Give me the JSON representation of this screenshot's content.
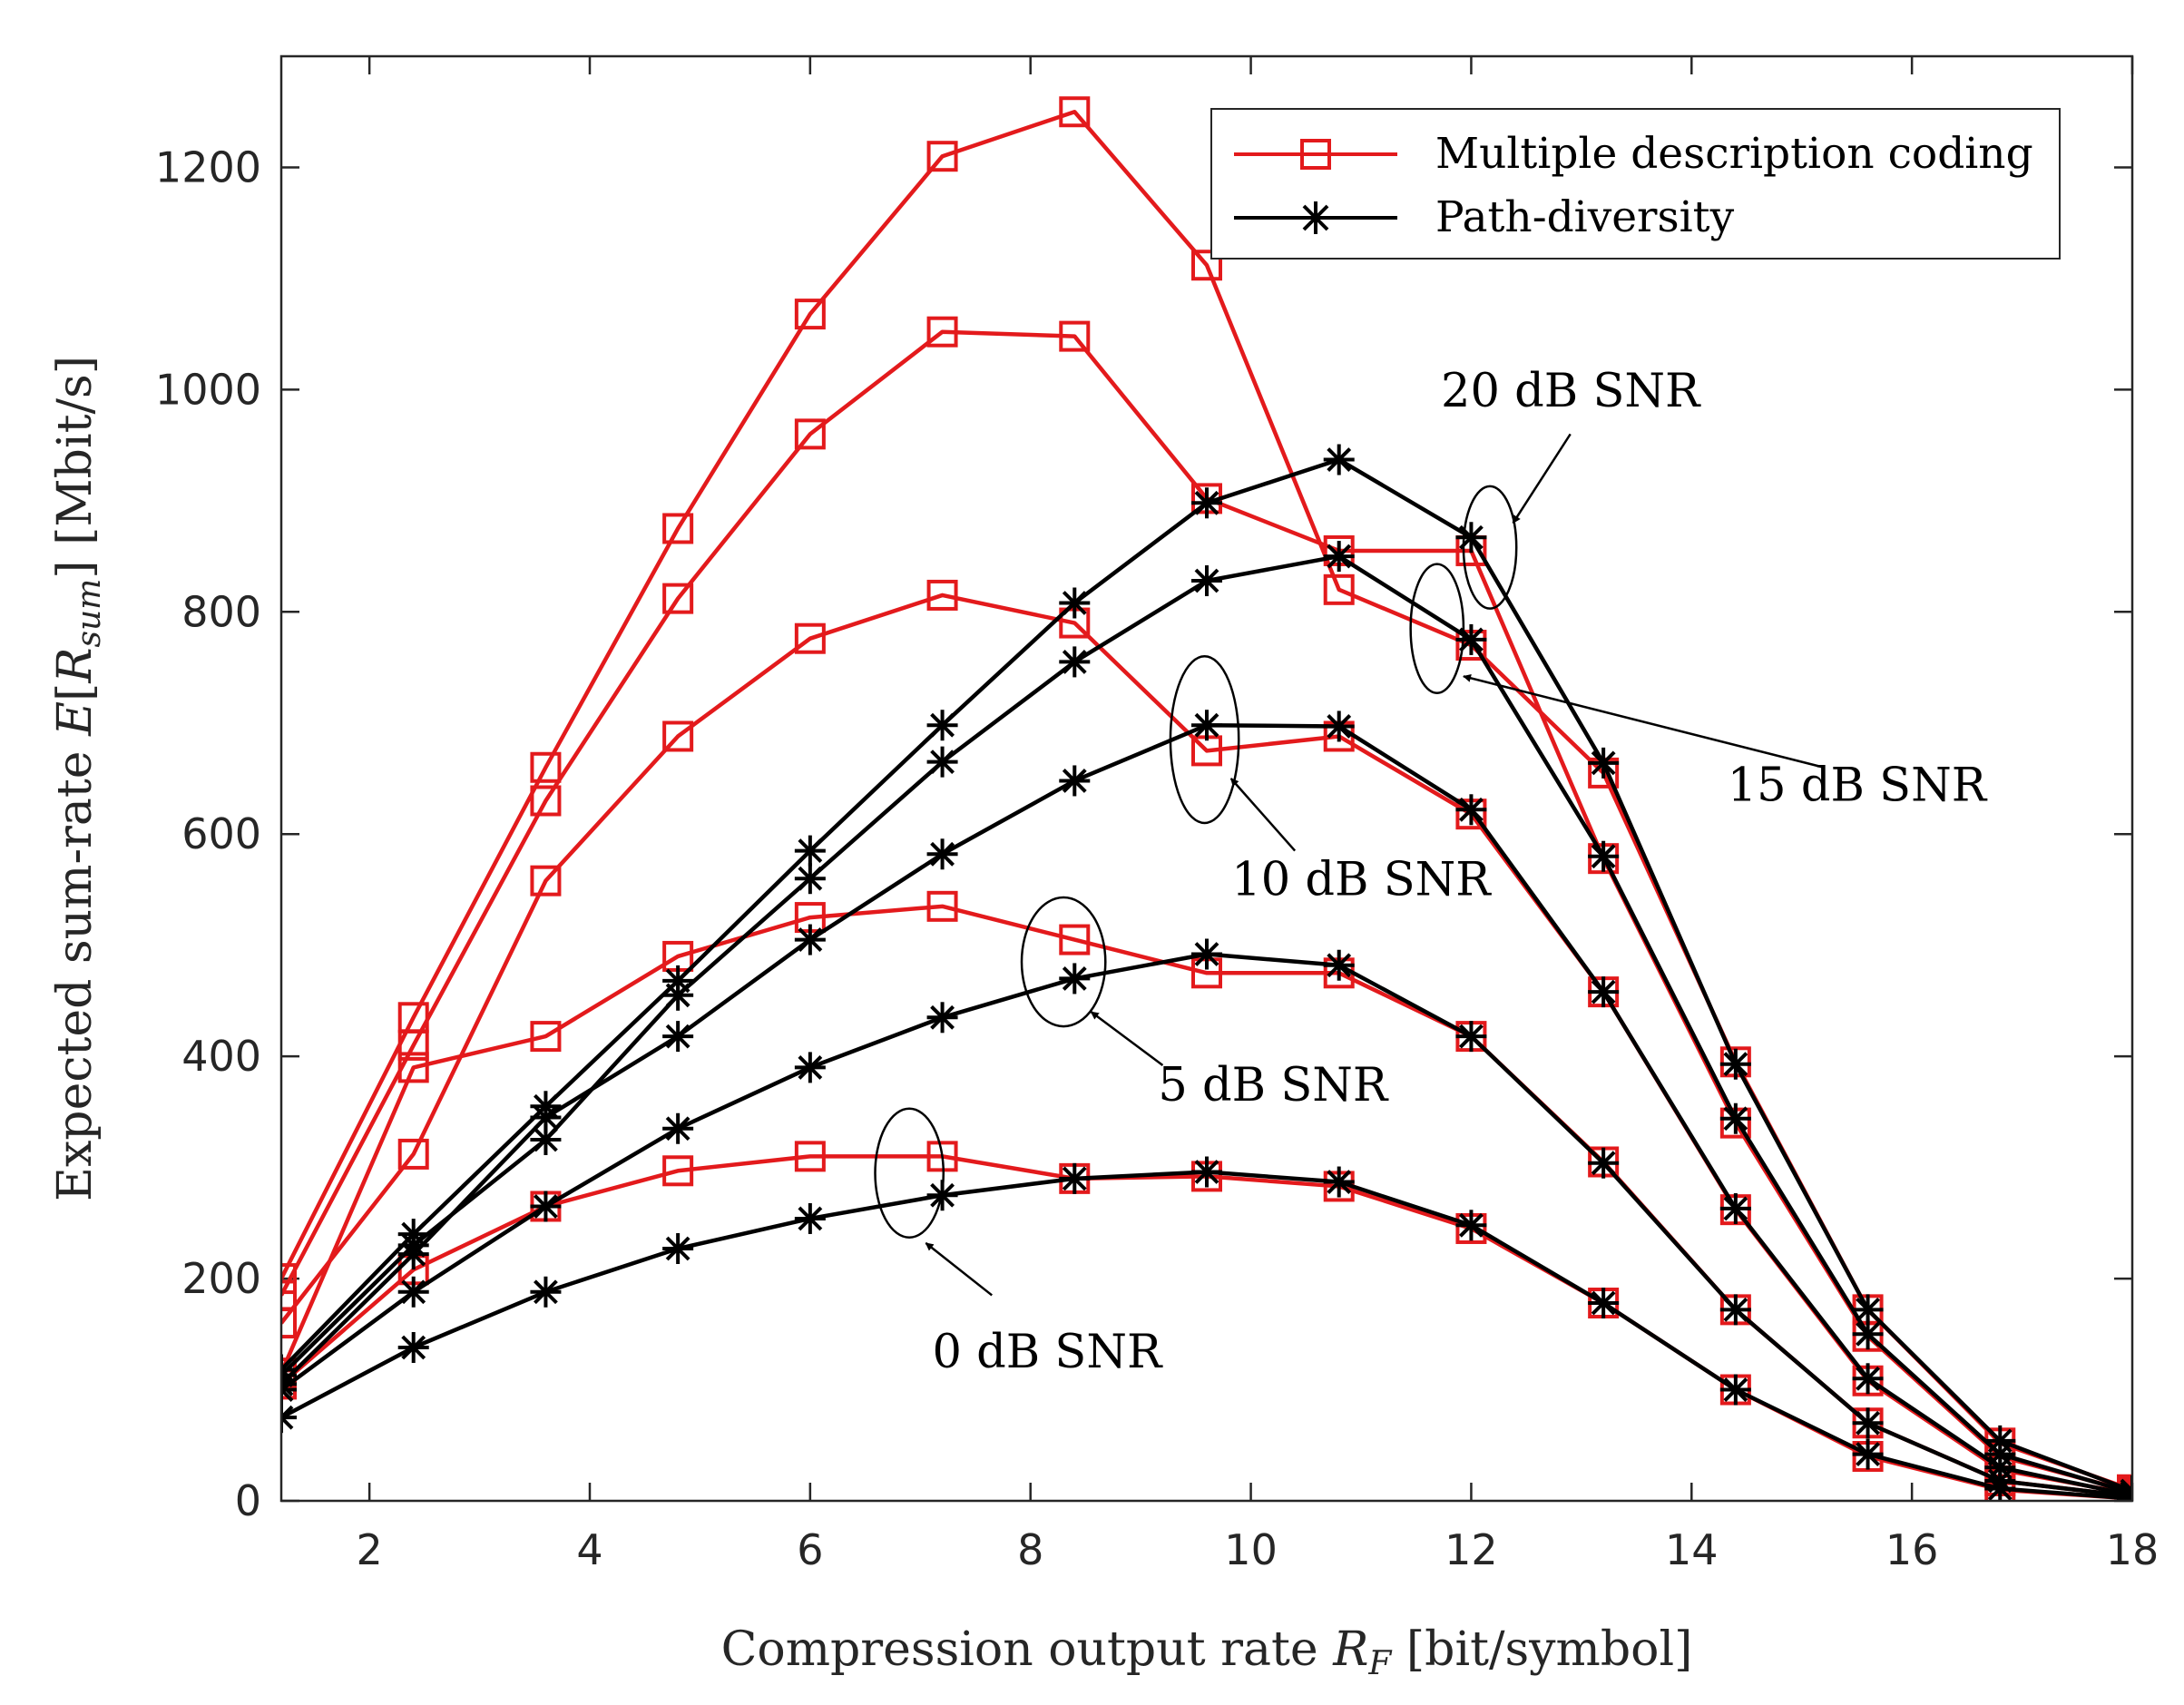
{
  "chart_data": {
    "type": "line",
    "xlabel": "Compression output rate R_F [bit/symbol]",
    "ylabel": "Expected sum-rate E[R_sum] [Mbit/s]",
    "xlabel_parts": {
      "pre": "Compression output rate ",
      "sym": "R",
      "sub": "F",
      "post": " [bit/symbol]"
    },
    "ylabel_parts": {
      "pre": "Expected sum-rate ",
      "sym": "E",
      "open": "[",
      "sym2": "R",
      "sub": "sum",
      "close": "]",
      "post": " [Mbit/s]"
    },
    "xlim": [
      1.2,
      18
    ],
    "ylim": [
      0,
      1300
    ],
    "xticks": [
      2,
      4,
      6,
      8,
      10,
      12,
      14,
      16,
      18
    ],
    "yticks": [
      0,
      200,
      400,
      600,
      800,
      1000,
      1200
    ],
    "x": [
      1.2,
      2.4,
      3.6,
      4.8,
      6.0,
      7.2,
      8.4,
      9.6,
      10.8,
      12.0,
      13.2,
      14.4,
      15.6,
      16.8,
      18.0
    ],
    "legend": {
      "position": "top-right",
      "entries": [
        {
          "label": "Multiple description coding",
          "color": "#e31a1c",
          "marker": "square"
        },
        {
          "label": "Path-diversity",
          "color": "#000000",
          "marker": "asterisk"
        }
      ]
    },
    "series": [
      {
        "group": "Multiple description coding",
        "snr": "20 dB SNR",
        "color": "#e31a1c",
        "marker": "square",
        "values": [
          200,
          435,
          660,
          875,
          1068,
          1210,
          1250,
          1112,
          820,
          770,
          655,
          395,
          172,
          52,
          10
        ]
      },
      {
        "group": "Multiple description coding",
        "snr": "15 dB SNR",
        "color": "#e31a1c",
        "marker": "square",
        "values": [
          185,
          410,
          630,
          812,
          960,
          1052,
          1048,
          902,
          855,
          855,
          578,
          340,
          148,
          40,
          8
        ]
      },
      {
        "group": "Multiple description coding",
        "snr": "10 dB SNR",
        "color": "#e31a1c",
        "marker": "square",
        "values": [
          160,
          312,
          558,
          688,
          776,
          815,
          790,
          675,
          688,
          618,
          458,
          262,
          108,
          28,
          6
        ]
      },
      {
        "group": "Multiple description coding",
        "snr": "5 dB SNR",
        "color": "#e31a1c",
        "marker": "square",
        "values": [
          115,
          390,
          418,
          490,
          525,
          535,
          505,
          475,
          475,
          418,
          305,
          172,
          70,
          18,
          4
        ]
      },
      {
        "group": "Multiple description coding",
        "snr": "0 dB SNR",
        "color": "#e31a1c",
        "marker": "square",
        "values": [
          105,
          208,
          265,
          297,
          310,
          310,
          290,
          292,
          283,
          245,
          178,
          100,
          40,
          10,
          2
        ]
      },
      {
        "group": "Path-diversity",
        "snr": "20 dB SNR",
        "color": "#000000",
        "marker": "asterisk",
        "values": [
          118,
          240,
          355,
          468,
          585,
          698,
          808,
          898,
          937,
          867,
          664,
          393,
          172,
          54,
          9
        ]
      },
      {
        "group": "Path-diversity",
        "snr": "15 dB SNR",
        "color": "#000000",
        "marker": "asterisk",
        "values": [
          113,
          230,
          325,
          455,
          560,
          665,
          755,
          828,
          850,
          775,
          580,
          344,
          150,
          42,
          7
        ]
      },
      {
        "group": "Path-diversity",
        "snr": "10 dB SNR",
        "color": "#000000",
        "marker": "asterisk",
        "values": [
          105,
          222,
          345,
          418,
          505,
          582,
          648,
          698,
          697,
          622,
          458,
          263,
          110,
          30,
          5
        ]
      },
      {
        "group": "Path-diversity",
        "snr": "5 dB SNR",
        "color": "#000000",
        "marker": "asterisk",
        "values": [
          100,
          188,
          265,
          335,
          390,
          435,
          470,
          492,
          482,
          418,
          304,
          172,
          70,
          18,
          4
        ]
      },
      {
        "group": "Path-diversity",
        "snr": "0 dB SNR",
        "color": "#000000",
        "marker": "asterisk",
        "values": [
          75,
          138,
          188,
          227,
          254,
          275,
          290,
          296,
          287,
          248,
          178,
          100,
          42,
          11,
          2
        ]
      }
    ],
    "annotations": [
      {
        "text": "20 dB SNR",
        "label_x": 12.9,
        "label_y": 985,
        "ellipse_cx": 12.17,
        "ellipse_cy": 858,
        "ellipse_rx": 0.24,
        "ellipse_ry": 55,
        "arrow_from": [
          12.9,
          960
        ],
        "arrow_to": [
          12.38,
          880
        ],
        "arrow_head": true
      },
      {
        "text": "15 dB SNR",
        "label_x": 15.5,
        "label_y": 630,
        "ellipse_cx": 11.69,
        "ellipse_cy": 785,
        "ellipse_rx": 0.24,
        "ellipse_ry": 58,
        "arrow_from": [
          15.2,
          660
        ],
        "arrow_to": [
          11.93,
          742
        ],
        "arrow_head": true
      },
      {
        "text": "10 dB SNR",
        "label_x": 11.0,
        "label_y": 545,
        "ellipse_cx": 9.58,
        "ellipse_cy": 685,
        "ellipse_rx": 0.31,
        "ellipse_ry": 75,
        "arrow_from": [
          10.4,
          585
        ],
        "arrow_to": [
          9.82,
          650
        ],
        "arrow_head": true
      },
      {
        "text": "5 dB SNR",
        "label_x": 10.2,
        "label_y": 360,
        "ellipse_cx": 8.3,
        "ellipse_cy": 485,
        "ellipse_rx": 0.38,
        "ellipse_ry": 58,
        "arrow_from": [
          9.2,
          392
        ],
        "arrow_to": [
          8.55,
          440
        ],
        "arrow_head": true
      },
      {
        "text": "0 dB SNR",
        "label_x": 8.15,
        "label_y": 120,
        "ellipse_cx": 6.9,
        "ellipse_cy": 295,
        "ellipse_rx": 0.31,
        "ellipse_ry": 58,
        "arrow_from": [
          7.65,
          185
        ],
        "arrow_to": [
          7.05,
          232
        ],
        "arrow_head": true
      }
    ]
  }
}
